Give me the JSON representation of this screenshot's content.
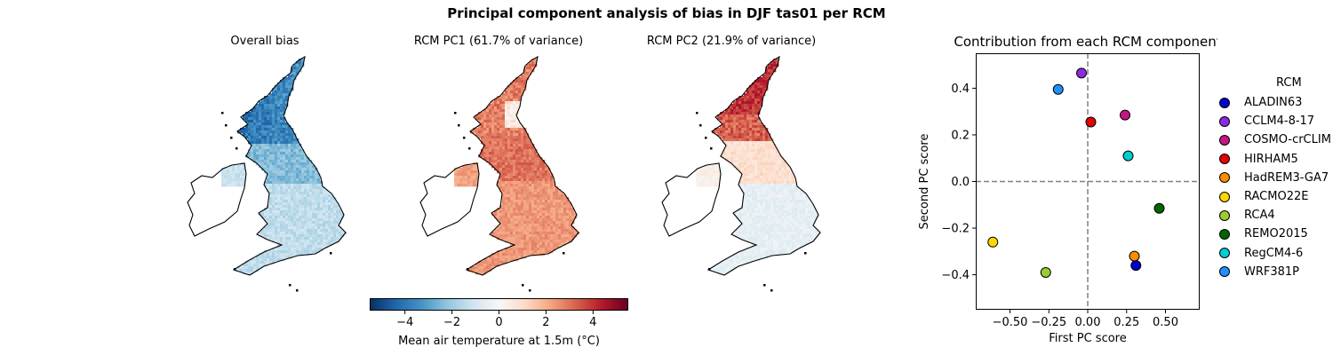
{
  "figure": {
    "suptitle": "Principal component analysis of bias in DJF tas01 per RCM"
  },
  "maps": [
    {
      "title": "Overall bias",
      "kind": "bias"
    },
    {
      "title": "RCM PC1 (61.7% of variance)",
      "kind": "pc1"
    },
    {
      "title": "RCM PC2 (21.9% of variance)",
      "kind": "pc2"
    }
  ],
  "colorbar": {
    "label": "Mean air temperature at 1.5m (°C)",
    "range": [
      -5.5,
      5.5
    ],
    "ticks": [
      -4,
      -2,
      0,
      2,
      4
    ],
    "tick_labels": [
      "−4",
      "−2",
      "0",
      "2",
      "4"
    ],
    "colormap": "RdBu_r"
  },
  "chart_data": {
    "type": "scatter",
    "title": "Contribution from each RCM component",
    "xlabel": "First PC score",
    "ylabel": "Second PC score",
    "xlim": [
      -0.72,
      0.72
    ],
    "ylim": [
      -0.55,
      0.55
    ],
    "xticks": [
      -0.5,
      -0.25,
      0.0,
      0.25,
      0.5
    ],
    "xtick_labels": [
      "−0.50",
      "−0.25",
      "0.00",
      "0.25",
      "0.50"
    ],
    "yticks": [
      -0.4,
      -0.2,
      0.0,
      0.2,
      0.4
    ],
    "ytick_labels": [
      "−0.4",
      "−0.2",
      "0.0",
      "0.2",
      "0.4"
    ],
    "reference_lines": {
      "x": 0.0,
      "y": 0.0,
      "style": "dashed",
      "color": "#808080"
    },
    "grid": false,
    "legend_title": "RCM",
    "legend_position": "outside-right",
    "points": [
      {
        "name": "ALADIN63",
        "x": 0.31,
        "y": -0.36,
        "color": "#0000cd"
      },
      {
        "name": "CCLM4-8-17",
        "x": -0.04,
        "y": 0.465,
        "color": "#8a2be2"
      },
      {
        "name": "COSMO-crCLIM",
        "x": 0.24,
        "y": 0.285,
        "color": "#c71585"
      },
      {
        "name": "HIRHAM5",
        "x": 0.02,
        "y": 0.255,
        "color": "#e60000"
      },
      {
        "name": "HadREM3-GA7",
        "x": 0.3,
        "y": -0.32,
        "color": "#ff8c00"
      },
      {
        "name": "RACMO22E",
        "x": -0.61,
        "y": -0.26,
        "color": "#ffd700"
      },
      {
        "name": "RCA4",
        "x": -0.27,
        "y": -0.39,
        "color": "#9acd32"
      },
      {
        "name": "REMO2015",
        "x": 0.46,
        "y": -0.115,
        "color": "#006400"
      },
      {
        "name": "RegCM4-6",
        "x": 0.26,
        "y": 0.11,
        "color": "#00ced1"
      },
      {
        "name": "WRF381P",
        "x": -0.19,
        "y": 0.395,
        "color": "#1e90ff"
      }
    ],
    "legend_labels": [
      "ALADIN63",
      "CCLM4-8-17",
      "COSMO-crCLIM",
      "HIRHAM5",
      "HadREM3-GA7",
      "RACMO22E",
      "RCA4",
      "REMO2015",
      "RegCM4-6",
      "WRF381P"
    ]
  }
}
